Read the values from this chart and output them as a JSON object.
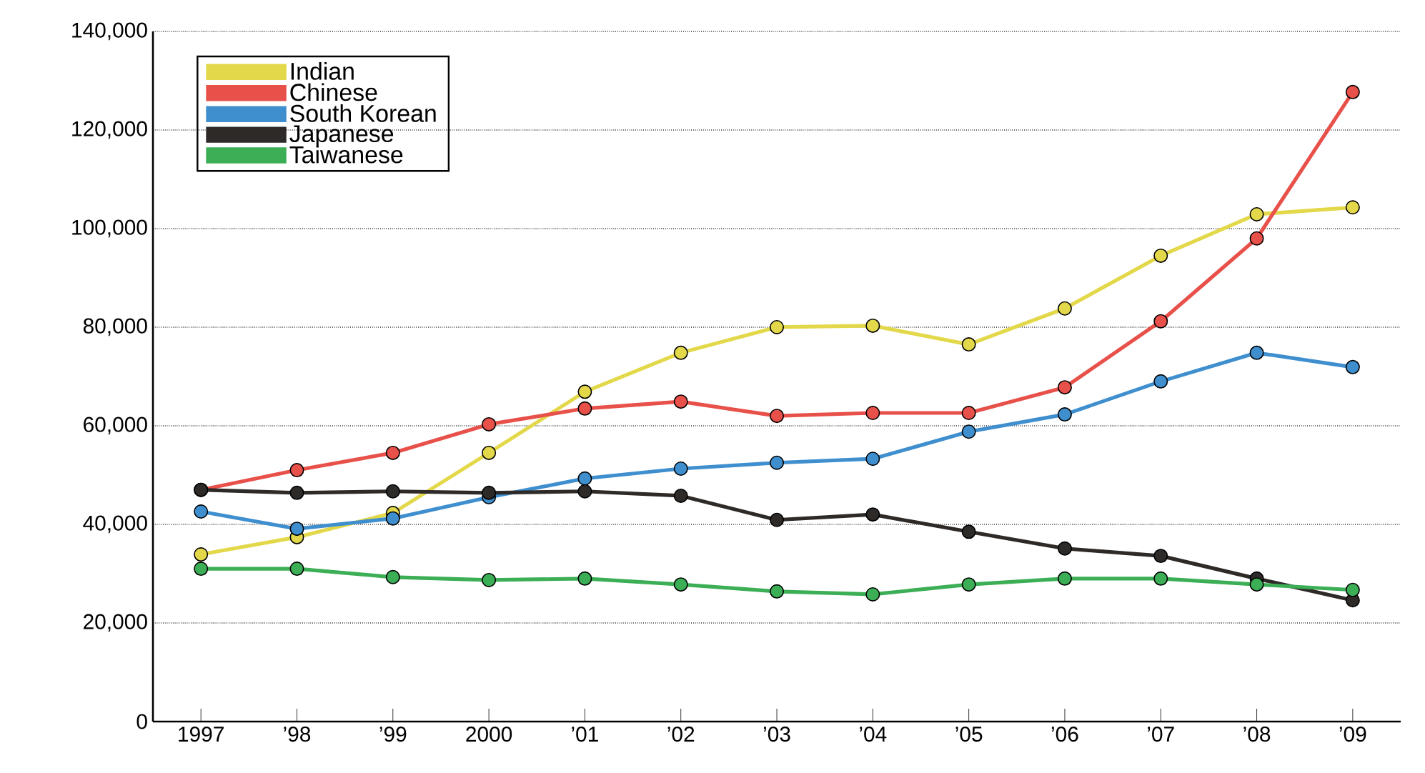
{
  "chart_data": {
    "type": "line",
    "categories": [
      "1997",
      "’98",
      "’99",
      "2000",
      "’01",
      "’02",
      "’03",
      "’04",
      "’05",
      "’06",
      "’07",
      "’08",
      "’09"
    ],
    "ylim": [
      0,
      140000
    ],
    "yticks": [
      {
        "value": 0,
        "label": "0"
      },
      {
        "value": 20000,
        "label": "20,000"
      },
      {
        "value": 40000,
        "label": "40,000"
      },
      {
        "value": 60000,
        "label": "60,000"
      },
      {
        "value": 80000,
        "label": "80,000"
      },
      {
        "value": 100000,
        "label": "100,000"
      },
      {
        "value": 120000,
        "label": "120,000"
      },
      {
        "value": 140000,
        "label": "140,000"
      }
    ],
    "grid": "y",
    "legend": "top left",
    "marker": "circle",
    "line_style": "solid",
    "series": [
      {
        "name": "Indian",
        "color": "#e3d84a",
        "values": [
          33900,
          37400,
          42300,
          54500,
          66900,
          74800,
          80000,
          80300,
          76500,
          83800,
          94500,
          102900,
          104300
        ]
      },
      {
        "name": "Chinese",
        "color": "#e8504a",
        "values": [
          47000,
          51000,
          54500,
          60300,
          63500,
          64900,
          62000,
          62600,
          62600,
          67800,
          81200,
          98000,
          127700
        ]
      },
      {
        "name": "South Korean",
        "color": "#3f8fcf",
        "values": [
          42600,
          39100,
          41200,
          45500,
          49300,
          51300,
          52500,
          53300,
          58800,
          62300,
          69000,
          74800,
          71900
        ]
      },
      {
        "name": "Japanese",
        "color": "#2e2a28",
        "values": [
          47000,
          46400,
          46700,
          46400,
          46700,
          45800,
          40900,
          42000,
          38500,
          35100,
          33600,
          29000,
          24600
        ]
      },
      {
        "name": "Taiwanese",
        "color": "#3cae55",
        "values": [
          31000,
          31000,
          29300,
          28700,
          29000,
          27800,
          26400,
          25800,
          27800,
          29000,
          29000,
          27800,
          26700
        ]
      }
    ]
  }
}
